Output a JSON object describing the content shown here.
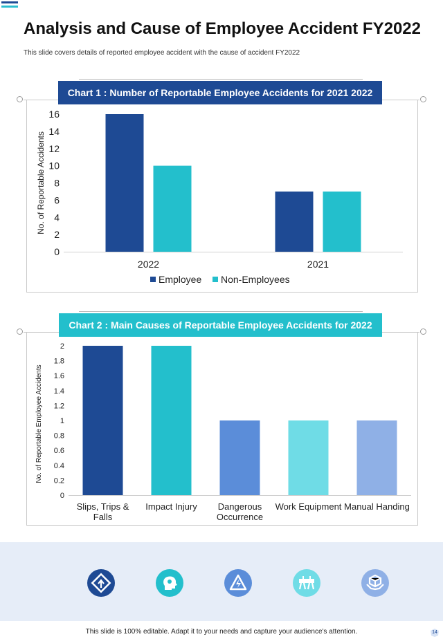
{
  "slide": {
    "title": "Analysis and Cause of Employee Accident FY2022",
    "subtitle": "This slide covers details of reported employee accident with the cause of accident FY2022",
    "footer": "This slide is 100% editable. Adapt it to your needs and capture your audience's attention.",
    "page_number": "14"
  },
  "colors": {
    "navy": "#1e4a94",
    "teal": "#23bfcc",
    "medium_blue": "#5b8dd9",
    "light_cyan": "#6fdce6",
    "periwinkle": "#8fb0e6",
    "icon_band": "#e6edf8"
  },
  "icons": [
    {
      "name": "road-sign-icon",
      "color": "#1e4a94"
    },
    {
      "name": "head-gear-icon",
      "color": "#23bfcc"
    },
    {
      "name": "warning-bolt-icon",
      "color": "#5b8dd9"
    },
    {
      "name": "barrier-icon",
      "color": "#6fdce6"
    },
    {
      "name": "box-hands-icon",
      "color": "#8fb0e6"
    }
  ],
  "chart_data": [
    {
      "type": "bar",
      "header": "Chart 1 : Number of Reportable Employee Accidents for 2021 2022",
      "categories": [
        "2022",
        "2021"
      ],
      "series": [
        {
          "name": "Employee",
          "values": [
            16,
            7
          ],
          "color": "#1e4a94"
        },
        {
          "name": "Non-Employees",
          "values": [
            10,
            7
          ],
          "color": "#23bfcc"
        }
      ],
      "ylabel": "No. of Reportable Accidents",
      "ylim": [
        0,
        16
      ],
      "yticks": [
        "0",
        "2",
        "4",
        "6",
        "8",
        "10",
        "12",
        "14",
        "16"
      ],
      "legend": "bottom"
    },
    {
      "type": "bar",
      "header": "Chart 2 : Main Causes of Reportable Employee Accidents for 2022",
      "categories": [
        [
          "Slips, Trips &",
          "Falls"
        ],
        [
          "Impact Injury"
        ],
        [
          "Dangerous",
          "Occurrence"
        ],
        [
          "Work Equipment"
        ],
        [
          "Manual Handing"
        ]
      ],
      "values": [
        2,
        2,
        1,
        1,
        1
      ],
      "colors": [
        "#1e4a94",
        "#23bfcc",
        "#5b8dd9",
        "#6fdce6",
        "#8fb0e6"
      ],
      "ylabel": "No. of Reportable Employee Accidents",
      "ylim": [
        0,
        2
      ],
      "yticks": [
        "0",
        "0.2",
        "0.4",
        "0.6",
        "0.8",
        "1",
        "1.2",
        "1.4",
        "1.6",
        "1.8",
        "2"
      ]
    }
  ]
}
